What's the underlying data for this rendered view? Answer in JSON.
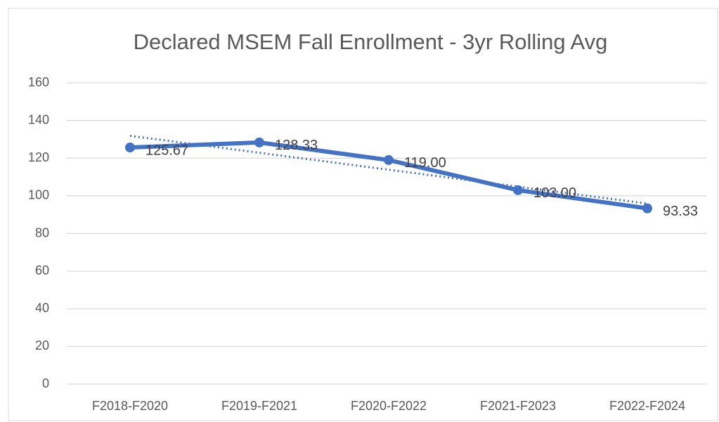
{
  "chart_data": {
    "type": "line",
    "title": "Declared MSEM Fall Enrollment - 3yr Rolling Avg",
    "categories": [
      "F2018-F2020",
      "F2019-F2021",
      "F2020-F2022",
      "F2021-F2023",
      "F2022-F2024"
    ],
    "values": [
      125.67,
      128.33,
      119,
      103,
      93.33
    ],
    "value_labels": [
      "125.67",
      "128.33",
      "119.00",
      "103.00",
      "93.33"
    ],
    "color": "#4472c4",
    "trendline": "linear",
    "ylim": [
      0,
      160
    ],
    "yticks": [
      0,
      20,
      40,
      60,
      80,
      100,
      120,
      140,
      160
    ],
    "grid": true
  }
}
